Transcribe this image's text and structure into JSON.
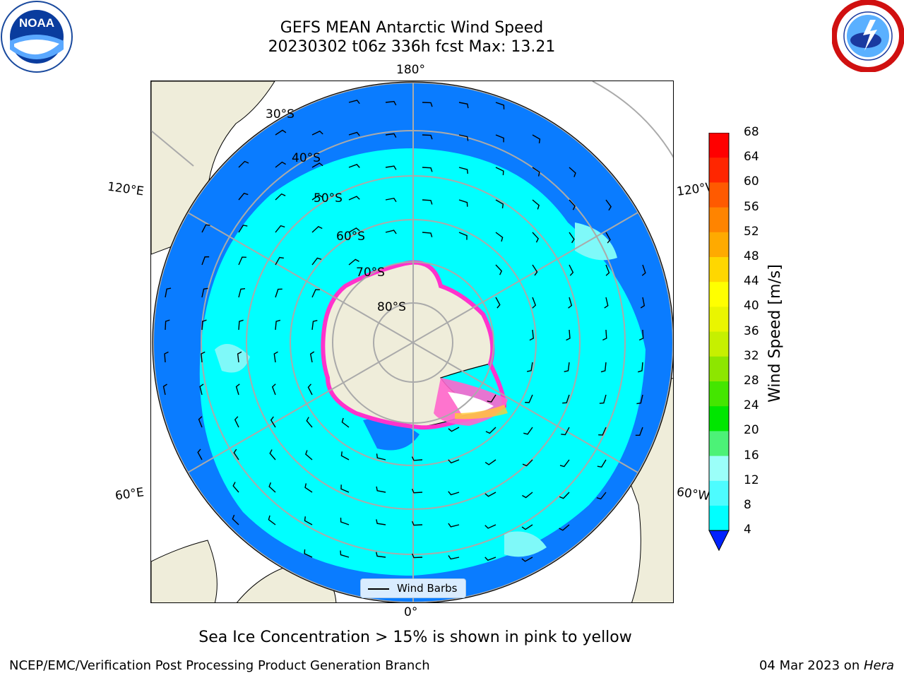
{
  "header": {
    "title_line1": "GEFS MEAN Antarctic Wind Speed",
    "title_line2": "20230302 t06z 336h fcst   Max: 13.21"
  },
  "logos": {
    "left": {
      "name": "noaa-logo",
      "text": "NOAA"
    },
    "right": {
      "name": "nws-logo"
    }
  },
  "map": {
    "longitude_labels": {
      "top": "180°",
      "bottom": "0°",
      "upper_left": "120°E",
      "upper_right": "120°W",
      "lower_left": "60°E",
      "lower_right": "60°W"
    },
    "latitude_labels": [
      "30°S",
      "40°S",
      "50°S",
      "60°S",
      "70°S",
      "80°S"
    ],
    "legend_label": "Wind Barbs",
    "colors": {
      "ocean_low": "#0a7cff",
      "ocean_mid": "#00ffff",
      "ocean_high": "#7ff9f9",
      "land": "#efedda",
      "sea_ice": "#ff33cc",
      "grid": "#aaaaaa"
    }
  },
  "colorbar": {
    "title": "Wind Speed [m/s]",
    "ticks": [
      "68",
      "64",
      "60",
      "56",
      "52",
      "48",
      "44",
      "40",
      "36",
      "32",
      "28",
      "24",
      "20",
      "16",
      "12",
      "8",
      "4"
    ],
    "colors": [
      "#0022ff",
      "#0a7cff",
      "#00ffff",
      "#4dfcff",
      "#9bfff9",
      "#4cf277",
      "#00e600",
      "#44e600",
      "#8de600",
      "#c6f000",
      "#eaf500",
      "#ffff00",
      "#ffd700",
      "#ffaa00",
      "#ff8400",
      "#ff5a00",
      "#ff2600",
      "#ff0000"
    ]
  },
  "subtitle": "Sea Ice Concentration > 15% is shown in pink to yellow",
  "footer": {
    "left": "NCEP/EMC/Verification Post Processing Product Generation Branch",
    "right_date": "04 Mar 2023 on ",
    "right_machine": "Hera"
  }
}
